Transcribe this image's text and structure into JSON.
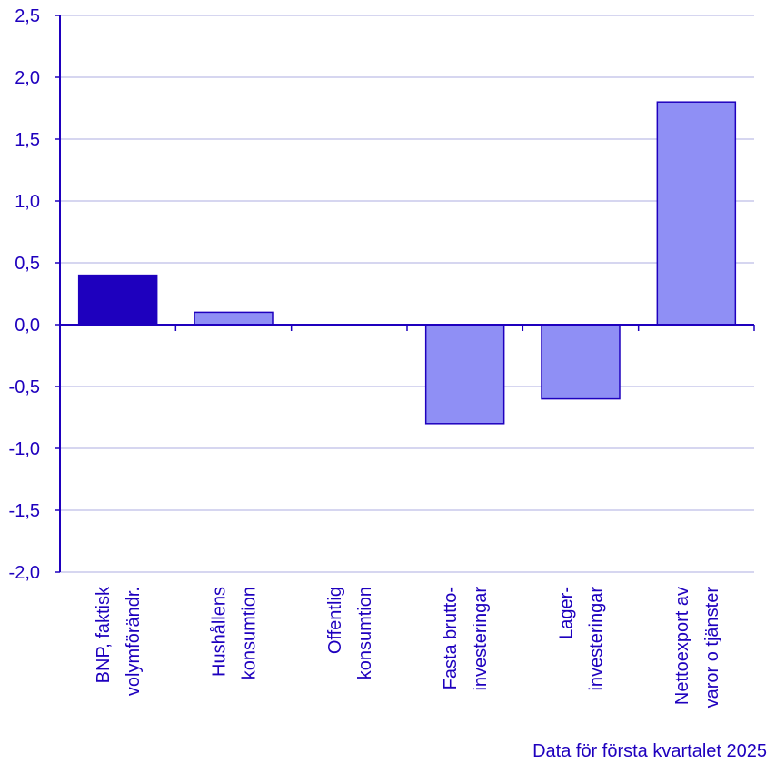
{
  "chart_data": {
    "type": "bar",
    "categories": [
      [
        "BNP, faktisk",
        "volymförändr."
      ],
      [
        "Hushållens",
        "konsumtion"
      ],
      [
        "Offentlig",
        "konsumtion"
      ],
      [
        "Fasta brutto-",
        "investeringar"
      ],
      [
        "Lager-",
        "investeringar"
      ],
      [
        "Nettoexport av",
        "varor o tjänster"
      ]
    ],
    "values": [
      0.4,
      0.1,
      0.0,
      -0.8,
      -0.6,
      1.8
    ],
    "ylim": [
      -2.0,
      2.5
    ],
    "yticks": [
      -2.0,
      -1.5,
      -1.0,
      -0.5,
      0.0,
      0.5,
      1.0,
      1.5,
      2.0,
      2.5
    ],
    "ytick_labels": [
      "-2,0",
      "-1,5",
      "-1,0",
      "-0,5",
      "0,0",
      "0,5",
      "1,0",
      "1,5",
      "2,0",
      "2,5"
    ],
    "grid": true,
    "colors": {
      "highlight": "#1e00be",
      "bar": "#8f8ff5",
      "outline": "#1e00be",
      "grid": "#c8c8eb",
      "text": "#1e00be"
    }
  },
  "source_note": "Data för första kvartalet 2025"
}
